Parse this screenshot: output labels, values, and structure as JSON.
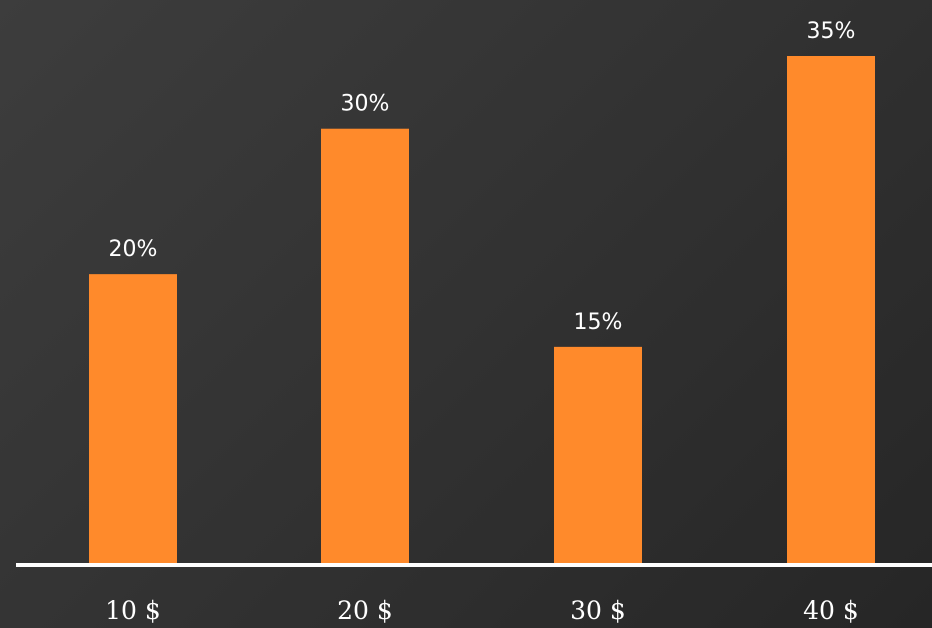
{
  "chart_data": {
    "type": "bar",
    "categories": [
      "10 $",
      "20 $",
      "30 $",
      "40 $"
    ],
    "values": [
      20,
      30,
      15,
      35
    ],
    "value_labels": [
      "20%",
      "30%",
      "15%",
      "35%"
    ],
    "title": "",
    "xlabel": "",
    "ylabel": "",
    "ylim": [
      0,
      35
    ],
    "grid": false,
    "legend": "none",
    "colors": {
      "bar": "#FF8A2B",
      "axis": "#FFFFFF",
      "text": "#FFFFFF",
      "background": "#333333"
    }
  }
}
